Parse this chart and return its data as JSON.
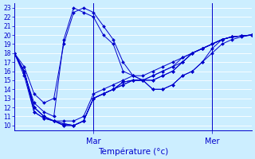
{
  "xlabel": "Température (°c)",
  "bg_color": "#cceeff",
  "line_color": "#0000cc",
  "grid_color": "#ffffff",
  "ylim": [
    9.5,
    23.5
  ],
  "yticks": [
    10,
    11,
    12,
    13,
    14,
    15,
    16,
    17,
    18,
    19,
    20,
    21,
    22,
    23
  ],
  "xlim": [
    0,
    96
  ],
  "xtick_positions": [
    32,
    80
  ],
  "xtick_labels": [
    "Mar",
    "Mer"
  ],
  "series": [
    {
      "x": [
        0,
        4,
        8,
        12,
        16,
        20,
        24,
        28,
        32,
        36,
        40,
        44,
        48,
        52,
        56,
        60,
        64,
        68,
        72,
        76,
        80,
        84,
        88,
        92,
        96
      ],
      "y": [
        18,
        16.5,
        13.5,
        12.5,
        13,
        19,
        22.5,
        23,
        22.5,
        21,
        19.5,
        17,
        15.5,
        15,
        14,
        14,
        14.5,
        15.5,
        16,
        17,
        18,
        19,
        19.5,
        19.8,
        20
      ]
    },
    {
      "x": [
        0,
        4,
        8,
        12,
        16,
        20,
        24,
        28,
        32,
        36,
        40,
        44,
        48,
        52,
        56,
        60,
        64,
        68,
        72,
        76,
        80,
        84,
        88,
        92,
        96
      ],
      "y": [
        18,
        15.8,
        12.5,
        11.5,
        11,
        19.5,
        23,
        22.5,
        22,
        20,
        19,
        16,
        15.5,
        15,
        14,
        14,
        14.5,
        15.5,
        16,
        17,
        18.5,
        19.5,
        19.8,
        19.9,
        20
      ]
    },
    {
      "x": [
        0,
        4,
        8,
        12,
        16,
        20,
        24,
        28,
        32,
        36,
        40,
        44,
        48,
        52,
        56,
        60,
        64,
        68,
        72,
        76,
        80,
        84,
        88,
        92,
        96
      ],
      "y": [
        18,
        16,
        12,
        11,
        10.5,
        10,
        10,
        10.5,
        13,
        13.5,
        14,
        14.5,
        15,
        15,
        15,
        15.5,
        16,
        17,
        18,
        18.5,
        19,
        19.5,
        19.8,
        19.9,
        20
      ]
    },
    {
      "x": [
        0,
        4,
        8,
        12,
        16,
        20,
        24,
        28,
        32,
        36,
        40,
        44,
        48,
        52,
        56,
        60,
        64,
        68,
        72,
        76,
        80,
        84,
        88,
        92,
        96
      ],
      "y": [
        18,
        16,
        12,
        11,
        10.5,
        10,
        10,
        10.5,
        13,
        13.5,
        14,
        14.5,
        15,
        15,
        15,
        15.5,
        16,
        17,
        18,
        18.5,
        19,
        19.5,
        19.8,
        19.9,
        20
      ]
    },
    {
      "x": [
        0,
        4,
        8,
        12,
        16,
        20,
        24,
        28,
        32,
        36,
        40,
        44,
        48,
        52,
        56,
        60,
        64,
        68,
        72,
        76,
        80,
        84,
        88,
        92,
        96
      ],
      "y": [
        18,
        16,
        11.5,
        10.8,
        10.5,
        10.2,
        10,
        10.5,
        13,
        13.5,
        14,
        14.8,
        15,
        15,
        15.5,
        16,
        16.5,
        17,
        18,
        18.5,
        19,
        19.5,
        19.8,
        19.9,
        20
      ]
    },
    {
      "x": [
        0,
        4,
        8,
        12,
        16,
        20,
        24,
        28,
        32,
        36,
        40,
        44,
        48,
        52,
        56,
        60,
        64,
        68,
        72,
        76,
        80,
        84,
        88,
        92,
        96
      ],
      "y": [
        18,
        15.5,
        11.5,
        10.8,
        10.5,
        10.2,
        10,
        10.5,
        13,
        13.5,
        14,
        14.8,
        15,
        15,
        15.5,
        16,
        16.5,
        17.5,
        18,
        18.5,
        19,
        19.5,
        19.8,
        19.9,
        20
      ]
    },
    {
      "x": [
        0,
        4,
        8,
        12,
        16,
        20,
        24,
        28,
        32,
        36,
        40,
        44,
        48,
        52,
        56,
        60,
        64,
        68,
        72,
        76,
        80,
        84,
        88,
        92,
        96
      ],
      "y": [
        18,
        16,
        12,
        11,
        10.5,
        10.5,
        10.5,
        11,
        13.5,
        14,
        14.5,
        15,
        15.5,
        15.5,
        16,
        16.5,
        17,
        17.5,
        18,
        18.5,
        19,
        19.5,
        19.8,
        19.9,
        20
      ]
    }
  ]
}
